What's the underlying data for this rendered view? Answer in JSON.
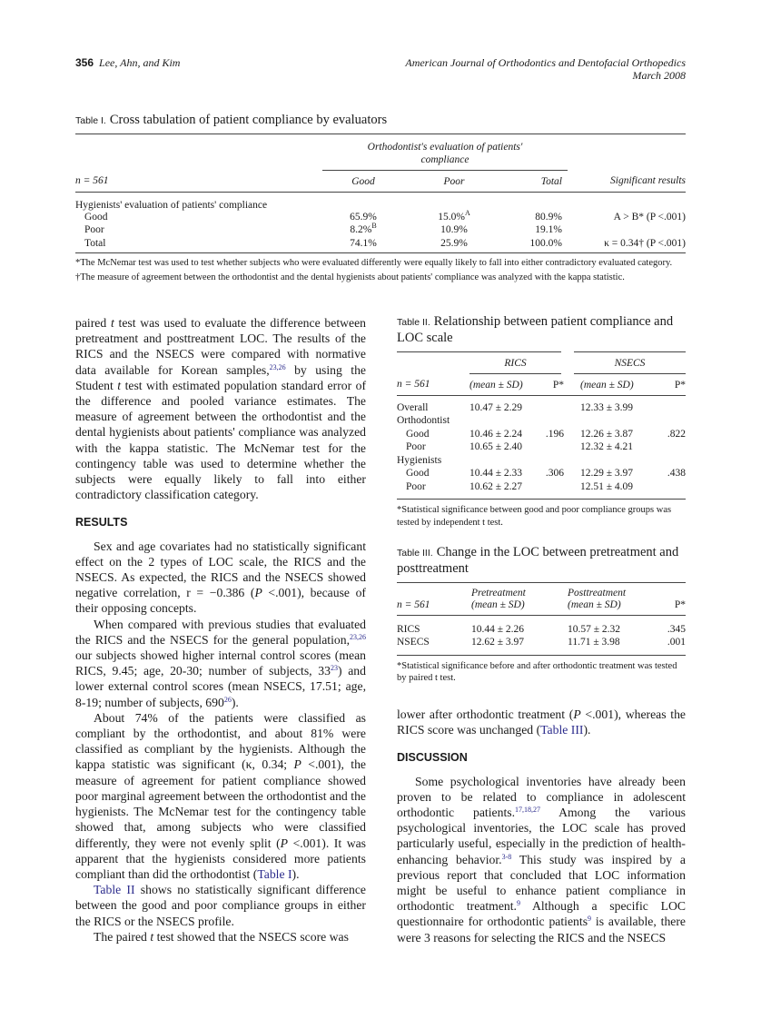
{
  "header": {
    "page": "356",
    "authors": "Lee, Ahn, and Kim",
    "journal": "American Journal of Orthodontics and Dentofacial Orthopedics",
    "date": "March 2008"
  },
  "table1": {
    "label": "Table I.",
    "title": "Cross tabulation of patient compliance by evaluators",
    "group_header": "Orthodontist's evaluation of patients' compliance",
    "columns": [
      "n = 561",
      "Good",
      "Poor",
      "Total",
      "Significant results"
    ],
    "section": "Hygienists' evaluation of patients' compliance",
    "rows": [
      {
        "label": "Good",
        "good": "65.9%",
        "good_sup": "",
        "poor": "15.0%",
        "poor_sup": "A",
        "total": "80.9%",
        "sig": "A > B* (P <.001)"
      },
      {
        "label": "Poor",
        "good": "8.2%",
        "good_sup": "B",
        "poor": "10.9%",
        "poor_sup": "",
        "total": "19.1%",
        "sig": ""
      },
      {
        "label": "Total",
        "good": "74.1%",
        "good_sup": "",
        "poor": "25.9%",
        "poor_sup": "",
        "total": "100.0%",
        "sig": "κ = 0.34† (P <.001)"
      }
    ],
    "footnotes": [
      "*The McNemar test was used to test whether subjects who were evaluated differently were equally likely to fall into either contradictory evaluated category.",
      "†The measure of agreement between the orthodontist and the dental hygienists about patients' compliance was analyzed with the kappa statistic."
    ]
  },
  "table2": {
    "label": "Table II.",
    "title": "Relationship between patient compliance and LOC scale",
    "groups": [
      "RICS",
      "NSECS"
    ],
    "columns": [
      "n = 561",
      "(mean ± SD)",
      "P*",
      "(mean ± SD)",
      "P*"
    ],
    "rows": [
      {
        "label": "Overall",
        "indent": false,
        "rics": "10.47 ± 2.29",
        "p1": "",
        "nsecs": "12.33 ± 3.99",
        "p2": ""
      },
      {
        "label": "Orthodontist",
        "indent": false,
        "rics": "",
        "p1": "",
        "nsecs": "",
        "p2": ""
      },
      {
        "label": "Good",
        "indent": true,
        "rics": "10.46 ± 2.24",
        "p1": ".196",
        "nsecs": "12.26 ± 3.87",
        "p2": ".822"
      },
      {
        "label": "Poor",
        "indent": true,
        "rics": "10.65 ± 2.40",
        "p1": "",
        "nsecs": "12.32 ± 4.21",
        "p2": ""
      },
      {
        "label": "Hygienists",
        "indent": false,
        "rics": "",
        "p1": "",
        "nsecs": "",
        "p2": ""
      },
      {
        "label": "Good",
        "indent": true,
        "rics": "10.44 ± 2.33",
        "p1": ".306",
        "nsecs": "12.29 ± 3.97",
        "p2": ".438"
      },
      {
        "label": "Poor",
        "indent": true,
        "rics": "10.62 ± 2.27",
        "p1": "",
        "nsecs": "12.51 ± 4.09",
        "p2": ""
      }
    ],
    "footnote": "*Statistical significance between good and poor compliance groups was tested by independent t test."
  },
  "table3": {
    "label": "Table III.",
    "title": "Change in the LOC between pretreatment and posttreatment",
    "columns": [
      "n = 561",
      "Pretreatment",
      "(mean ± SD)",
      "Posttreatment",
      "(mean ± SD)",
      "P*"
    ],
    "rows": [
      {
        "label": "RICS",
        "pre": "10.44 ± 2.26",
        "post": "10.57 ± 2.32",
        "p": ".345"
      },
      {
        "label": "NSECS",
        "pre": "12.62 ± 3.97",
        "post": "11.71 ± 3.98",
        "p": ".001"
      }
    ],
    "footnote": "*Statistical significance before and after orthodontic treatment was tested by paired t test."
  },
  "left_column": [
    {
      "ni": true,
      "segs": [
        {
          "t": "paired "
        },
        {
          "i": "t"
        },
        {
          "t": " test was used to evaluate the difference between pretreatment and posttreatment LOC. The results of the RICS and the NSECS were compared with normative data available for Korean samples,"
        },
        {
          "sup": "23,26"
        },
        {
          "t": " by using the Student "
        },
        {
          "i": "t"
        },
        {
          "t": " test with estimated population standard error of the difference and pooled variance estimates. The measure of agreement between the orthodontist and the dental hygienists about patients' compliance was analyzed with the kappa statistic. The McNemar test for the contingency table was used to determine whether the subjects were equally likely to fall into either contradictory classification category."
        }
      ]
    },
    {
      "heading": "RESULTS"
    },
    {
      "segs": [
        {
          "t": "Sex and age covariates had no statistically significant effect on the 2 types of LOC scale, the RICS and the NSECS. As expected, the RICS and the NSECS showed negative correlation, r = −0.386 ("
        },
        {
          "i": "P"
        },
        {
          "t": " <.001), because of their opposing concepts."
        }
      ]
    },
    {
      "segs": [
        {
          "t": "When compared with previous studies that evaluated the RICS and the NSECS for the general population,"
        },
        {
          "sup": "23,26"
        },
        {
          "t": " our subjects showed higher internal control scores (mean RICS, 9.45; age, 20-30; number of subjects, 33"
        },
        {
          "sup": "23"
        },
        {
          "t": ") and lower external control scores (mean NSECS, 17.51; age, 8-19; number of subjects, 690"
        },
        {
          "sup": "26"
        },
        {
          "t": ")."
        }
      ]
    },
    {
      "segs": [
        {
          "t": "About 74% of the patients were classified as compliant by the orthodontist, and about 81% were classified as compliant by the hygienists. Although the kappa statistic was significant (κ, 0.34; "
        },
        {
          "i": "P"
        },
        {
          "t": " <.001), the measure of agreement for patient compliance showed poor marginal agreement between the orthodontist and the hygienists. The McNemar test for the contingency table showed that, among subjects who were classified differently, they were not evenly split ("
        },
        {
          "i": "P"
        },
        {
          "t": " <.001). It was apparent that the hygienists considered more patients compliant than did the orthodontist ("
        },
        {
          "link": "Table I"
        },
        {
          "t": ")."
        }
      ]
    },
    {
      "segs": [
        {
          "link": "Table II"
        },
        {
          "t": " shows no statistically significant difference between the good and poor compliance groups in either the RICS or the NSECS profile."
        }
      ]
    },
    {
      "segs": [
        {
          "t": "The paired "
        },
        {
          "i": "t"
        },
        {
          "t": " test showed that the NSECS score was"
        }
      ]
    }
  ],
  "right_column": [
    {
      "ni": true,
      "segs": [
        {
          "t": "lower after orthodontic treatment ("
        },
        {
          "i": "P"
        },
        {
          "t": " <.001), whereas the RICS score was unchanged ("
        },
        {
          "link": "Table III"
        },
        {
          "t": ")."
        }
      ]
    },
    {
      "heading": "DISCUSSION"
    },
    {
      "segs": [
        {
          "t": "Some psychological inventories have already been proven to be related to compliance in adolescent orthodontic patients."
        },
        {
          "sup": "17,18,27"
        },
        {
          "t": " Among the various psychological inventories, the LOC scale has proved particularly useful, especially in the prediction of health-enhancing behavior."
        },
        {
          "sup": "3-8"
        },
        {
          "t": " This study was inspired by a previous report that concluded that LOC information might be useful to enhance patient compliance in orthodontic treatment."
        },
        {
          "sup": "9"
        },
        {
          "t": " Although a specific LOC questionnaire for orthodontic patients"
        },
        {
          "sup": "9"
        },
        {
          "t": " is available, there were 3 reasons for selecting the RICS and the NSECS"
        }
      ]
    }
  ],
  "colors": {
    "link": "#2b2b8c"
  }
}
